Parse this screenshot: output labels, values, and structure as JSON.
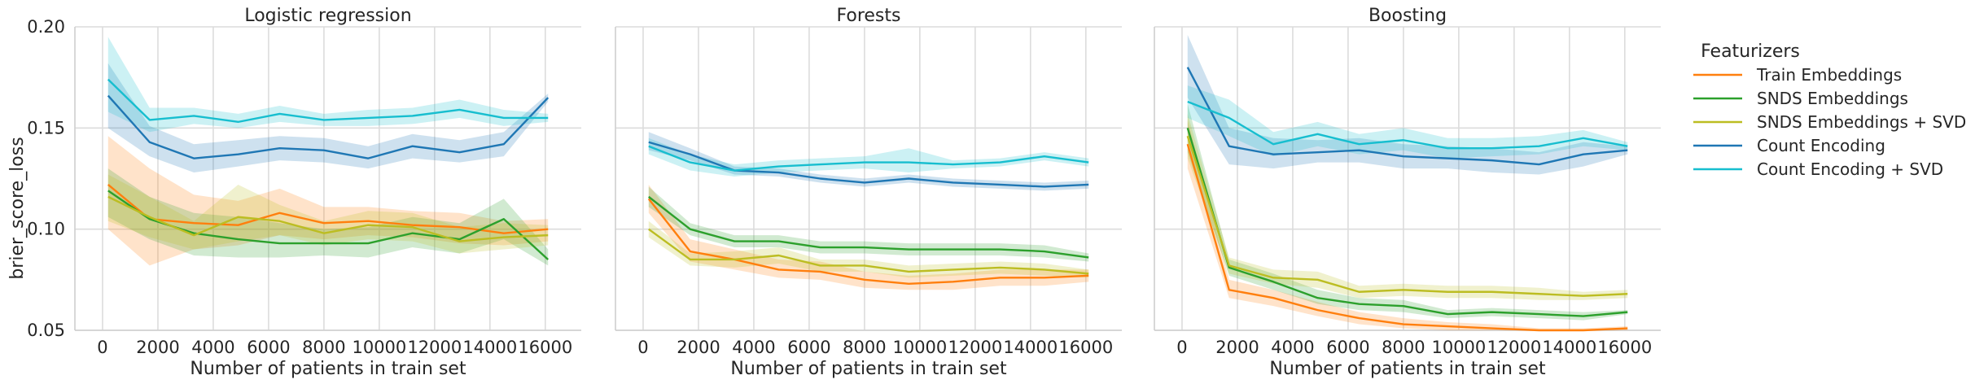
{
  "chart_data": {
    "type": "line",
    "ylabel": "brier_score_loss",
    "ylim": [
      0.05,
      0.2
    ],
    "yticks": [
      "0.05",
      "0.10",
      "0.15",
      "0.20"
    ],
    "xlabel": "Number of patients in train set",
    "xlim": [
      -1000,
      17300
    ],
    "xticks": [
      "0",
      "2000",
      "4000",
      "6000",
      "8000",
      "10000",
      "12000",
      "14000",
      "16000"
    ],
    "grid": true,
    "legend": {
      "title": "Featurizers",
      "placement": "right",
      "entries": [
        "Train Embeddings",
        "SNDS Embeddings",
        "SNDS Embeddings + SVD",
        "Count Encoding",
        "Count Encoding + SVD"
      ]
    },
    "colors": {
      "Train Embeddings": "#ff7f0e",
      "SNDS Embeddings": "#2ca02c",
      "SNDS Embeddings + SVD": "#bcbd22",
      "Count Encoding": "#1f77b4",
      "Count Encoding + SVD": "#17becf"
    },
    "x": [
      200,
      1700,
      3300,
      4900,
      6400,
      8000,
      9600,
      11200,
      12900,
      14500,
      16100
    ],
    "panels": [
      {
        "title": "Logistic regression",
        "series": [
          {
            "name": "Train Embeddings",
            "values": [
              0.122,
              0.105,
              0.103,
              0.102,
              0.108,
              0.103,
              0.104,
              0.102,
              0.101,
              0.098,
              0.1
            ],
            "lower": [
              0.1,
              0.082,
              0.09,
              0.092,
              0.097,
              0.095,
              0.097,
              0.096,
              0.093,
              0.092,
              0.094
            ],
            "upper": [
              0.146,
              0.13,
              0.117,
              0.114,
              0.12,
              0.111,
              0.111,
              0.109,
              0.108,
              0.104,
              0.105
            ]
          },
          {
            "name": "SNDS Embeddings",
            "values": [
              0.119,
              0.105,
              0.098,
              0.095,
              0.093,
              0.093,
              0.093,
              0.098,
              0.095,
              0.105,
              0.085
            ],
            "lower": [
              0.106,
              0.095,
              0.087,
              0.086,
              0.086,
              0.087,
              0.086,
              0.091,
              0.088,
              0.095,
              0.082
            ],
            "upper": [
              0.13,
              0.116,
              0.108,
              0.106,
              0.103,
              0.1,
              0.101,
              0.106,
              0.103,
              0.115,
              0.09
            ]
          },
          {
            "name": "SNDS Embeddings + SVD",
            "values": [
              0.116,
              0.106,
              0.097,
              0.106,
              0.104,
              0.098,
              0.102,
              0.101,
              0.094,
              0.096,
              0.097
            ],
            "lower": [
              0.104,
              0.096,
              0.09,
              0.094,
              0.097,
              0.092,
              0.095,
              0.094,
              0.088,
              0.09,
              0.092
            ],
            "upper": [
              0.127,
              0.116,
              0.104,
              0.122,
              0.112,
              0.104,
              0.109,
              0.108,
              0.101,
              0.103,
              0.102
            ]
          },
          {
            "name": "Count Encoding",
            "values": [
              0.166,
              0.143,
              0.135,
              0.137,
              0.14,
              0.139,
              0.135,
              0.141,
              0.138,
              0.142,
              0.165
            ],
            "lower": [
              0.15,
              0.136,
              0.128,
              0.131,
              0.134,
              0.133,
              0.13,
              0.135,
              0.133,
              0.136,
              0.163
            ],
            "upper": [
              0.182,
              0.151,
              0.142,
              0.144,
              0.146,
              0.145,
              0.141,
              0.147,
              0.144,
              0.148,
              0.167
            ]
          },
          {
            "name": "Count Encoding + SVD",
            "values": [
              0.174,
              0.154,
              0.156,
              0.153,
              0.157,
              0.154,
              0.155,
              0.156,
              0.159,
              0.155,
              0.155
            ],
            "lower": [
              0.158,
              0.148,
              0.152,
              0.15,
              0.153,
              0.151,
              0.151,
              0.152,
              0.155,
              0.151,
              0.153
            ],
            "upper": [
              0.195,
              0.16,
              0.16,
              0.157,
              0.161,
              0.157,
              0.159,
              0.16,
              0.164,
              0.159,
              0.157
            ]
          }
        ]
      },
      {
        "title": "Forests",
        "series": [
          {
            "name": "Train Embeddings",
            "values": [
              0.115,
              0.089,
              0.085,
              0.08,
              0.079,
              0.075,
              0.073,
              0.074,
              0.076,
              0.076,
              0.077
            ],
            "lower": [
              0.108,
              0.084,
              0.08,
              0.076,
              0.075,
              0.071,
              0.07,
              0.07,
              0.072,
              0.072,
              0.074
            ],
            "upper": [
              0.122,
              0.095,
              0.09,
              0.085,
              0.084,
              0.079,
              0.077,
              0.078,
              0.08,
              0.08,
              0.08
            ]
          },
          {
            "name": "SNDS Embeddings",
            "values": [
              0.116,
              0.1,
              0.094,
              0.094,
              0.091,
              0.091,
              0.09,
              0.09,
              0.09,
              0.089,
              0.086
            ],
            "lower": [
              0.111,
              0.097,
              0.091,
              0.091,
              0.088,
              0.088,
              0.087,
              0.087,
              0.087,
              0.086,
              0.084
            ],
            "upper": [
              0.121,
              0.103,
              0.097,
              0.097,
              0.094,
              0.094,
              0.093,
              0.093,
              0.093,
              0.092,
              0.088
            ]
          },
          {
            "name": "SNDS Embeddings + SVD",
            "values": [
              0.1,
              0.085,
              0.085,
              0.087,
              0.082,
              0.082,
              0.079,
              0.08,
              0.081,
              0.08,
              0.078
            ],
            "lower": [
              0.096,
              0.082,
              0.081,
              0.083,
              0.079,
              0.079,
              0.076,
              0.077,
              0.078,
              0.077,
              0.076
            ],
            "upper": [
              0.104,
              0.088,
              0.089,
              0.091,
              0.085,
              0.085,
              0.082,
              0.083,
              0.084,
              0.083,
              0.08
            ]
          },
          {
            "name": "Count Encoding",
            "values": [
              0.143,
              0.137,
              0.129,
              0.128,
              0.125,
              0.123,
              0.125,
              0.123,
              0.122,
              0.121,
              0.122
            ],
            "lower": [
              0.139,
              0.134,
              0.127,
              0.126,
              0.123,
              0.121,
              0.123,
              0.121,
              0.12,
              0.119,
              0.12
            ],
            "upper": [
              0.148,
              0.14,
              0.131,
              0.13,
              0.127,
              0.125,
              0.127,
              0.125,
              0.124,
              0.123,
              0.124
            ]
          },
          {
            "name": "Count Encoding + SVD",
            "values": [
              0.141,
              0.133,
              0.129,
              0.131,
              0.132,
              0.133,
              0.133,
              0.132,
              0.133,
              0.136,
              0.133
            ],
            "lower": [
              0.137,
              0.129,
              0.126,
              0.128,
              0.129,
              0.13,
              0.128,
              0.13,
              0.131,
              0.134,
              0.131
            ],
            "upper": [
              0.145,
              0.137,
              0.132,
              0.134,
              0.135,
              0.136,
              0.14,
              0.134,
              0.135,
              0.138,
              0.135
            ]
          }
        ]
      },
      {
        "title": "Boosting",
        "series": [
          {
            "name": "Train Embeddings",
            "values": [
              0.142,
              0.07,
              0.066,
              0.06,
              0.056,
              0.053,
              0.052,
              0.051,
              0.05,
              0.05,
              0.051
            ],
            "lower": [
              0.13,
              0.066,
              0.062,
              0.057,
              0.053,
              0.051,
              0.05,
              0.05,
              0.05,
              0.05,
              0.05
            ],
            "upper": [
              0.154,
              0.075,
              0.07,
              0.064,
              0.059,
              0.056,
              0.054,
              0.053,
              0.051,
              0.051,
              0.052
            ]
          },
          {
            "name": "SNDS Embeddings",
            "values": [
              0.15,
              0.081,
              0.074,
              0.066,
              0.063,
              0.062,
              0.058,
              0.059,
              0.058,
              0.057,
              0.059
            ],
            "lower": [
              0.138,
              0.077,
              0.07,
              0.063,
              0.06,
              0.059,
              0.056,
              0.057,
              0.056,
              0.055,
              0.058
            ],
            "upper": [
              0.162,
              0.085,
              0.078,
              0.07,
              0.066,
              0.065,
              0.06,
              0.061,
              0.06,
              0.059,
              0.06
            ]
          },
          {
            "name": "SNDS Embeddings + SVD",
            "values": [
              0.146,
              0.082,
              0.076,
              0.075,
              0.069,
              0.07,
              0.069,
              0.069,
              0.068,
              0.067,
              0.068
            ],
            "lower": [
              0.135,
              0.078,
              0.073,
              0.071,
              0.066,
              0.067,
              0.066,
              0.066,
              0.065,
              0.065,
              0.066
            ],
            "upper": [
              0.157,
              0.086,
              0.08,
              0.079,
              0.072,
              0.073,
              0.072,
              0.072,
              0.071,
              0.069,
              0.07
            ]
          },
          {
            "name": "Count Encoding",
            "values": [
              0.18,
              0.141,
              0.137,
              0.138,
              0.139,
              0.136,
              0.135,
              0.134,
              0.132,
              0.137,
              0.139
            ],
            "lower": [
              0.165,
              0.132,
              0.13,
              0.133,
              0.133,
              0.13,
              0.13,
              0.128,
              0.127,
              0.131,
              0.137
            ],
            "upper": [
              0.196,
              0.15,
              0.145,
              0.144,
              0.145,
              0.142,
              0.141,
              0.14,
              0.138,
              0.143,
              0.141
            ]
          },
          {
            "name": "Count Encoding + SVD",
            "values": [
              0.163,
              0.155,
              0.142,
              0.147,
              0.142,
              0.144,
              0.14,
              0.14,
              0.141,
              0.145,
              0.141
            ],
            "lower": [
              0.155,
              0.146,
              0.136,
              0.141,
              0.137,
              0.139,
              0.135,
              0.136,
              0.137,
              0.141,
              0.139
            ],
            "upper": [
              0.171,
              0.164,
              0.148,
              0.153,
              0.147,
              0.15,
              0.145,
              0.145,
              0.146,
              0.149,
              0.143
            ]
          }
        ]
      }
    ]
  }
}
